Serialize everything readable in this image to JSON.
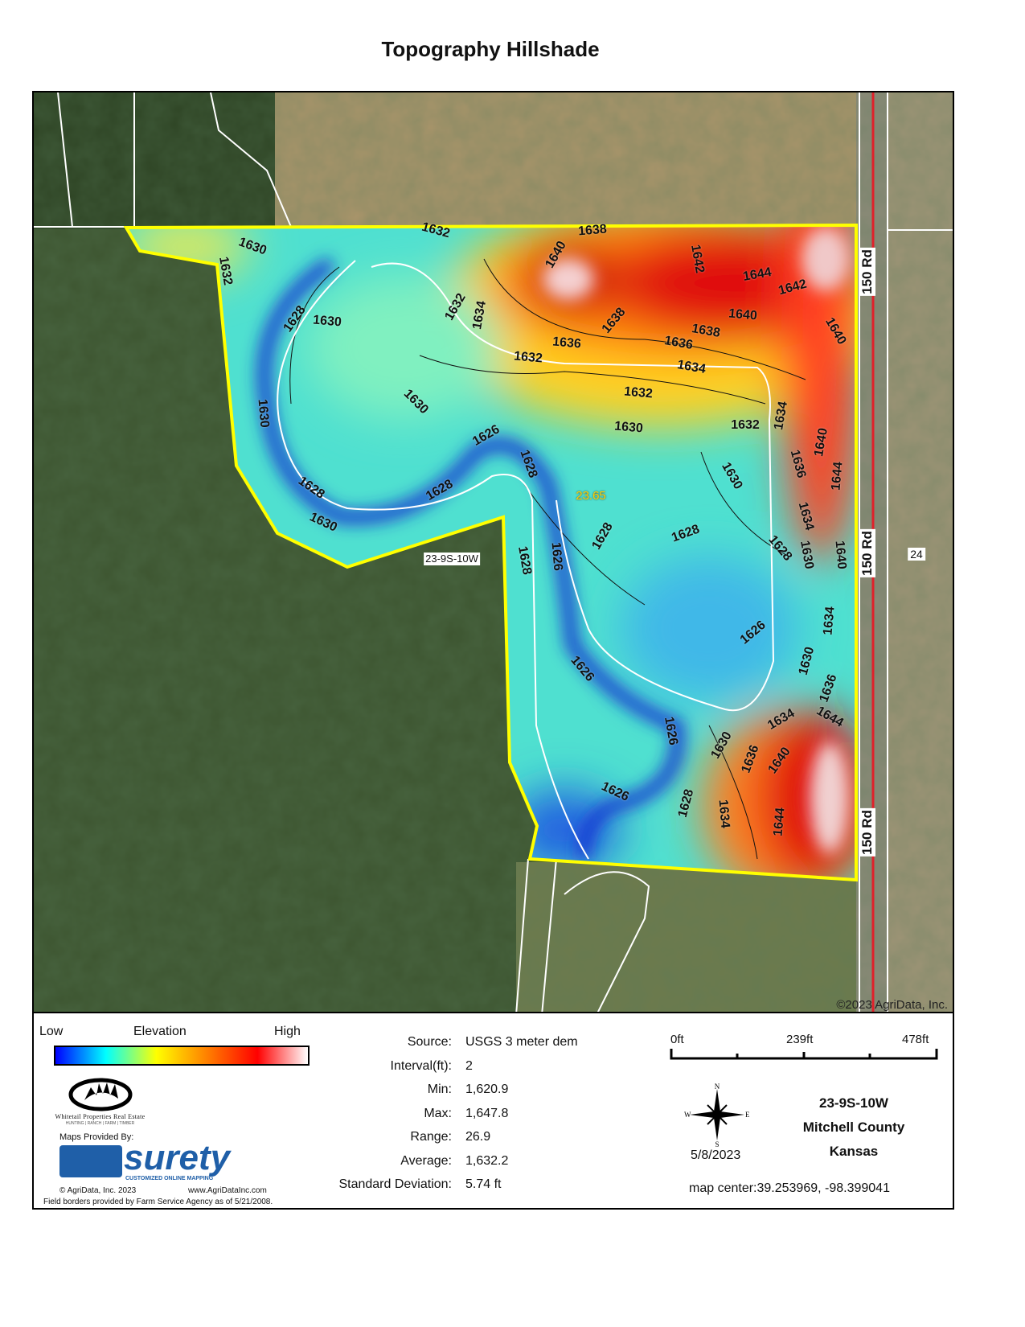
{
  "title": "Topography Hillshade",
  "map": {
    "parcel_label": "23-9S-10W",
    "area_label": "23.65",
    "road_labels": [
      "150 Rd",
      "150 Rd",
      "150 Rd"
    ],
    "section_label": "24",
    "copyright": "©2023 AgriData, Inc.",
    "contour_labels": [
      "1632",
      "1638",
      "1630",
      "1632",
      "1640",
      "1642",
      "1644",
      "1642",
      "1628",
      "1630",
      "1632",
      "1634",
      "1640",
      "1638",
      "1638",
      "1640",
      "1636",
      "1636",
      "1632",
      "1634",
      "1630",
      "1632",
      "1632",
      "1634",
      "1630",
      "1630",
      "1626",
      "1640",
      "1636",
      "1628",
      "1644",
      "1630",
      "1628",
      "1628",
      "1630",
      "1634",
      "1628",
      "1628",
      "1628",
      "1630",
      "1640",
      "1628",
      "1626",
      "1626",
      "1634",
      "1630",
      "1636",
      "1626",
      "1644",
      "1634",
      "1626",
      "1630",
      "1636",
      "1640",
      "1626",
      "1628",
      "1634",
      "1644"
    ],
    "boundary_color": "#ffff00"
  },
  "legend": {
    "low": "Low",
    "elevation": "Elevation",
    "high": "High",
    "ramp_colors": [
      "#0000ff",
      "#00ffff",
      "#ffff00",
      "#ff8000",
      "#ff0000",
      "#ffffff"
    ],
    "whitetail_name": "Whitetail Properties Real Estate",
    "whitetail_tagline": "HUNTING | RANCH | FARM | TIMBER",
    "maps_provided_by": "Maps Provided By:",
    "surety": "surety",
    "surety_tagline": "CUSTOMIZED ONLINE MAPPING",
    "agridata_copyright": "© AgriData, Inc. 2023",
    "agridata_url": "www.AgriDataInc.com",
    "field_borders_note": "Field borders provided by Farm Service Agency as of 5/21/2008."
  },
  "stats": [
    {
      "label": "Source:",
      "value": "USGS 3 meter dem"
    },
    {
      "label": "Interval(ft):",
      "value": "2"
    },
    {
      "label": "Min:",
      "value": "1,620.9"
    },
    {
      "label": "Max:",
      "value": "1,647.8"
    },
    {
      "label": "Range:",
      "value": "26.9"
    },
    {
      "label": "Average:",
      "value": "1,632.2"
    },
    {
      "label": "Standard Deviation:",
      "value": "5.74 ft"
    }
  ],
  "scale": {
    "labels": [
      "0ft",
      "239ft",
      "478ft"
    ]
  },
  "compass": {
    "n": "N",
    "s": "S",
    "e": "E",
    "w": "W"
  },
  "date": "5/8/2023",
  "location": {
    "section": "23-9S-10W",
    "county": "Mitchell County",
    "state": "Kansas"
  },
  "map_center": "map center:39.253969, -98.399041"
}
